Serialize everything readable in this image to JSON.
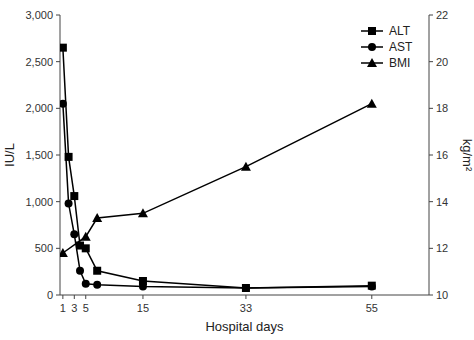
{
  "chart_data": {
    "type": "line",
    "xlabel": "Hospital days",
    "ylabel": "IU/L",
    "y2label": "kg/m²",
    "xlim": [
      0.5,
      65
    ],
    "xticks": [
      1,
      3,
      5,
      15,
      33,
      55
    ],
    "ylim": [
      0,
      3000
    ],
    "yticks": [
      0,
      500,
      {
        "value": 1000,
        "label": "1,000"
      },
      {
        "value": 1500,
        "label": "1,500"
      },
      {
        "value": 2000,
        "label": "2,000"
      },
      {
        "value": 2500,
        "label": "2,500"
      },
      {
        "value": 3000,
        "label": "3,000"
      }
    ],
    "y2lim": [
      10,
      22
    ],
    "y2ticks": [
      10,
      12,
      14,
      16,
      18,
      20,
      22
    ],
    "grid": false,
    "legend": "upper right",
    "series": [
      {
        "name": "ALT",
        "color": "#000000",
        "marker": "square",
        "x": [
          1,
          2,
          3,
          4,
          5,
          7,
          15,
          33,
          55
        ],
        "values": [
          2650,
          1480,
          1060,
          530,
          500,
          260,
          150,
          75,
          100
        ]
      },
      {
        "name": "AST",
        "color": "#000000",
        "marker": "circle",
        "x": [
          1,
          2,
          3,
          4,
          5,
          7,
          15,
          33,
          55
        ],
        "values": [
          2050,
          980,
          650,
          260,
          120,
          110,
          90,
          75,
          90
        ]
      },
      {
        "name": "BMI",
        "color": "#000000",
        "marker": "triangle",
        "axis": "y2",
        "x": [
          1,
          5,
          7,
          15,
          33,
          55
        ],
        "values": [
          11.8,
          12.5,
          13.3,
          13.5,
          15.5,
          18.2
        ]
      }
    ]
  }
}
